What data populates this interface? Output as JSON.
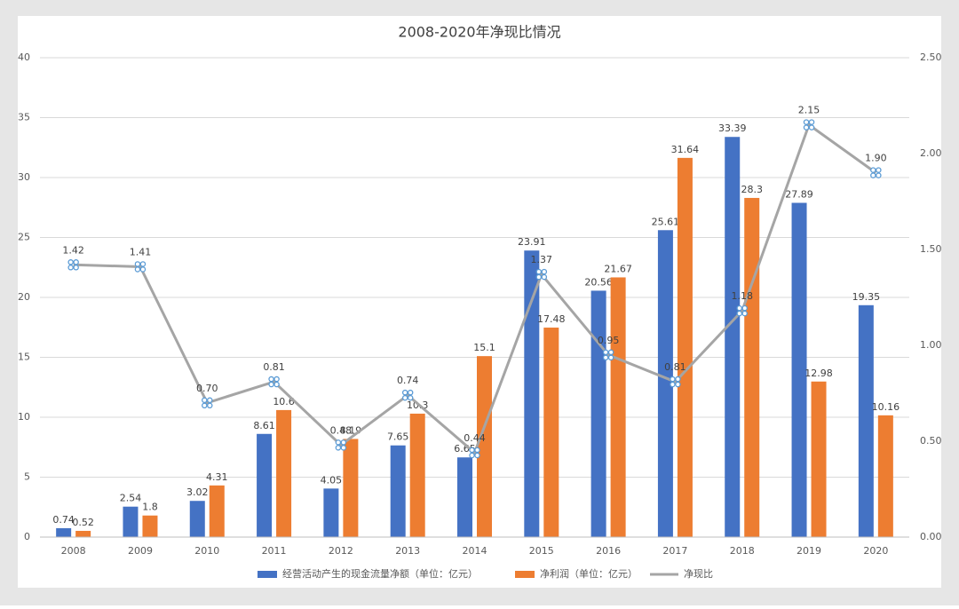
{
  "chart_data": {
    "type": "bar",
    "title": "2008-2020年净现比情况",
    "categories": [
      "2008",
      "2009",
      "2010",
      "2011",
      "2012",
      "2013",
      "2014",
      "2015",
      "2016",
      "2017",
      "2018",
      "2019",
      "2020"
    ],
    "series": [
      {
        "name": "经营活动产生的现金流量净额（单位：亿元）",
        "color": "#4472c4",
        "type": "bar",
        "values": [
          0.74,
          2.54,
          3.02,
          8.61,
          4.05,
          7.65,
          6.65,
          23.91,
          20.56,
          25.61,
          33.39,
          27.89,
          19.35
        ]
      },
      {
        "name": "净利润（单位：亿元）",
        "color": "#ed7d31",
        "type": "bar",
        "values": [
          0.52,
          1.8,
          4.31,
          10.6,
          8.19,
          10.3,
          15.1,
          17.48,
          21.67,
          31.64,
          28.3,
          12.98,
          10.16
        ]
      },
      {
        "name": "净现比",
        "color": "#a5a5a5",
        "type": "line",
        "axis": "y2",
        "values": [
          1.42,
          1.41,
          0.7,
          0.81,
          0.48,
          0.74,
          0.44,
          1.37,
          0.95,
          0.81,
          1.18,
          2.15,
          1.9
        ],
        "value_labels": [
          "1.42",
          "1.41",
          "0.70",
          "0.81",
          "0.48",
          "0.74",
          "0.44",
          "1.37",
          "0.95",
          "0.81",
          "1.18",
          "2.15",
          "1.90"
        ]
      }
    ],
    "ylim": [
      0,
      40
    ],
    "yticks": [
      0,
      5,
      10,
      15,
      20,
      25,
      30,
      35,
      40
    ],
    "y2lim": [
      0,
      2.5
    ],
    "y2ticks": [
      {
        "value": 0,
        "label": "0.00"
      },
      {
        "value": 0.5,
        "label": "0.50"
      },
      {
        "value": 1,
        "label": "1.00"
      },
      {
        "value": 1.5,
        "label": "1.50"
      },
      {
        "value": 2,
        "label": "2.00"
      },
      {
        "value": 2.5,
        "label": "2.50"
      }
    ],
    "grid": true,
    "legend": "bottom"
  }
}
